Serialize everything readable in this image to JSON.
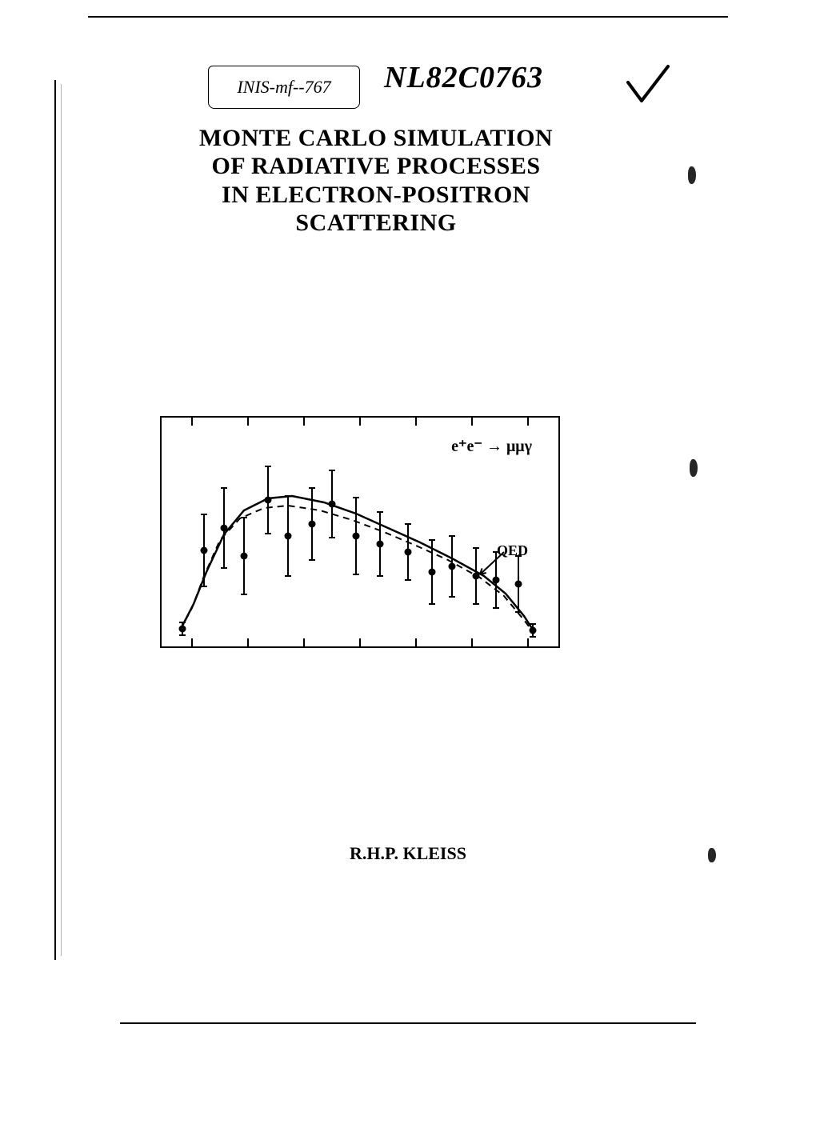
{
  "handwritten_code": "INIS-mf--767",
  "document_number": "NL82C0763",
  "title_lines": [
    "MONTE CARLO SIMULATION",
    "OF RADIATIVE PROCESSES",
    "IN ELECTRON-POSITRON",
    "SCATTERING"
  ],
  "author": "R.H.P. KLEISS",
  "reaction_label": "e⁺e⁻ → μμγ",
  "qed_label": "QED",
  "chart": {
    "type": "scatter-with-curves",
    "background_color": "#ffffff",
    "frame_color": "#000000",
    "line_width": 2,
    "x_range": [
      0,
      480
    ],
    "y_range": [
      0,
      280
    ],
    "tick_positions_top": [
      40,
      110,
      180,
      250,
      320,
      390,
      460
    ],
    "tick_positions_bottom": [
      40,
      110,
      180,
      250,
      320,
      390,
      460
    ],
    "dashed_curve": {
      "stroke": "#000000",
      "dash": "8,6",
      "width": 2,
      "points": [
        [
          25,
          268
        ],
        [
          40,
          240
        ],
        [
          55,
          200
        ],
        [
          75,
          155
        ],
        [
          100,
          128
        ],
        [
          130,
          115
        ],
        [
          160,
          112
        ],
        [
          200,
          118
        ],
        [
          240,
          130
        ],
        [
          280,
          145
        ],
        [
          320,
          162
        ],
        [
          360,
          180
        ],
        [
          400,
          202
        ],
        [
          430,
          225
        ],
        [
          455,
          255
        ],
        [
          468,
          272
        ]
      ]
    },
    "solid_curve": {
      "stroke": "#000000",
      "width": 2.5,
      "points": [
        [
          25,
          268
        ],
        [
          42,
          235
        ],
        [
          58,
          195
        ],
        [
          80,
          148
        ],
        [
          105,
          118
        ],
        [
          135,
          103
        ],
        [
          165,
          100
        ],
        [
          205,
          108
        ],
        [
          245,
          122
        ],
        [
          285,
          140
        ],
        [
          325,
          158
        ],
        [
          365,
          178
        ],
        [
          405,
          200
        ],
        [
          432,
          222
        ],
        [
          455,
          250
        ],
        [
          468,
          270
        ]
      ]
    },
    "qed_arrow": {
      "from": [
        430,
        170
      ],
      "to": [
        400,
        198
      ]
    },
    "data_points": [
      {
        "x": 28,
        "y": 266,
        "err": 8
      },
      {
        "x": 55,
        "y": 168,
        "err": 45
      },
      {
        "x": 80,
        "y": 140,
        "err": 50
      },
      {
        "x": 105,
        "y": 175,
        "err": 48
      },
      {
        "x": 135,
        "y": 105,
        "err": 42
      },
      {
        "x": 160,
        "y": 150,
        "err": 50
      },
      {
        "x": 190,
        "y": 135,
        "err": 45
      },
      {
        "x": 215,
        "y": 110,
        "err": 42
      },
      {
        "x": 245,
        "y": 150,
        "err": 48
      },
      {
        "x": 275,
        "y": 160,
        "err": 40
      },
      {
        "x": 310,
        "y": 170,
        "err": 35
      },
      {
        "x": 340,
        "y": 195,
        "err": 40
      },
      {
        "x": 365,
        "y": 188,
        "err": 38
      },
      {
        "x": 395,
        "y": 200,
        "err": 35
      },
      {
        "x": 420,
        "y": 205,
        "err": 35
      },
      {
        "x": 448,
        "y": 210,
        "err": 35
      },
      {
        "x": 466,
        "y": 268,
        "err": 8
      }
    ],
    "marker_radius": 4.5,
    "marker_fill": "#000000"
  },
  "colors": {
    "background": "#ffffff",
    "text": "#000000",
    "border": "#000000"
  },
  "typography": {
    "title_fontsize": 30,
    "author_fontsize": 22,
    "docnum_fontsize": 38,
    "font_family": "Times New Roman"
  }
}
